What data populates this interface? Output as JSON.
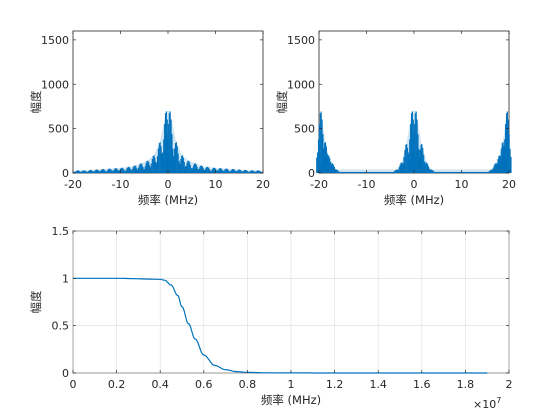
{
  "colors": {
    "series": "#0072BD",
    "axis": "#262626",
    "grid": "#dcdcdc"
  },
  "chart_data": [
    {
      "type": "line",
      "title": "",
      "xlabel": "频率 (MHz)",
      "ylabel": "幅度",
      "xlim": [
        -20,
        20
      ],
      "ylim": [
        0,
        1600
      ],
      "xticks": [
        "-20",
        "-10",
        "0",
        "10",
        "20"
      ],
      "yticks": [
        "0",
        "500",
        "1000",
        "1500"
      ],
      "grid": false,
      "series": [
        {
          "style": "dense-spectrum",
          "x": [
            -19.0,
            -17.7,
            -16.3,
            -15.0,
            -13.7,
            -12.3,
            -11.0,
            -9.7,
            -8.3,
            -7.0,
            -5.7,
            -4.3,
            -3.0,
            -1.7,
            -0.4,
            0.4,
            1.7,
            3.0,
            4.3,
            5.7,
            7.0,
            8.3,
            9.7,
            11.0,
            12.3,
            13.7,
            15.0,
            16.3,
            17.7,
            19.0
          ],
          "y": [
            30,
            30,
            35,
            40,
            45,
            50,
            55,
            60,
            70,
            85,
            110,
            140,
            200,
            350,
            700,
            700,
            350,
            200,
            140,
            110,
            85,
            70,
            60,
            55,
            50,
            45,
            40,
            35,
            30,
            30
          ]
        }
      ]
    },
    {
      "type": "line",
      "title": "",
      "xlabel": "频率 (MHz)",
      "ylabel": "幅度",
      "xlim": [
        -20,
        20
      ],
      "ylim": [
        0,
        1600
      ],
      "xticks": [
        "-20",
        "-10",
        "0",
        "10",
        "20"
      ],
      "yticks": [
        "0",
        "500",
        "1000",
        "1500"
      ],
      "grid": false,
      "series": [
        {
          "style": "dense-spectrum",
          "x": [
            -19.6,
            -18.7,
            -18.0,
            -17.2,
            -16.4,
            -3.6,
            -2.6,
            -1.6,
            -0.4,
            0.4,
            1.6,
            2.6,
            3.6,
            16.4,
            17.2,
            18.0,
            18.7,
            19.6
          ],
          "y": [
            700,
            350,
            200,
            110,
            40,
            40,
            120,
            330,
            700,
            700,
            330,
            120,
            40,
            40,
            110,
            200,
            350,
            700
          ]
        }
      ]
    },
    {
      "type": "line",
      "title": "",
      "xlabel": "频率 (MHz)",
      "ylabel": "幅度",
      "xlim": [
        0,
        20000000
      ],
      "ylim": [
        0,
        1.5
      ],
      "xticks": [
        "0",
        "0.2",
        "0.4",
        "0.6",
        "0.8",
        "1",
        "1.2",
        "1.4",
        "1.6",
        "1.8",
        "2"
      ],
      "xtick_values": [
        0,
        2000000,
        4000000,
        6000000,
        8000000,
        10000000,
        12000000,
        14000000,
        16000000,
        18000000,
        20000000
      ],
      "x_exponent": "×10",
      "x_exponent_power": "7",
      "yticks": [
        "0",
        "0.5",
        "1",
        "1.5"
      ],
      "grid": true,
      "series": [
        {
          "style": "smooth",
          "x": [
            0,
            2000000,
            4000000,
            4200000,
            4500000,
            4800000,
            5000000,
            5300000,
            5600000,
            6000000,
            6500000,
            7000000,
            7500000,
            8000000,
            9000000,
            10000000,
            12000000,
            15000000,
            19000000
          ],
          "y": [
            1.0,
            1.0,
            0.99,
            0.98,
            0.93,
            0.82,
            0.7,
            0.52,
            0.36,
            0.19,
            0.08,
            0.035,
            0.015,
            0.006,
            0.002,
            0.0008,
            0.0002,
            0.0001,
            0.0
          ]
        }
      ]
    }
  ]
}
